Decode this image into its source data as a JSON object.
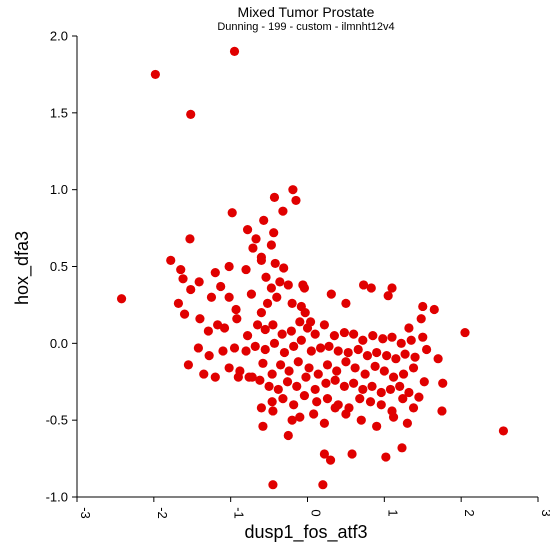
{
  "chart_data": {
    "type": "scatter",
    "title": "Mixed Tumor Prostate",
    "subtitle": "Dunning - 199 - custom - ilmnht12v4",
    "xlabel": "dusp1_fos_atf3",
    "ylabel": "hox_dfa3",
    "xlim": [
      -3,
      3
    ],
    "ylim": [
      -1.0,
      2.0
    ],
    "xticks": [
      "-3",
      "-2",
      "-1",
      "0",
      "1",
      "2",
      "3"
    ],
    "yticks": [
      "-1.0",
      "-0.5",
      "0.0",
      "0.5",
      "1.0",
      "1.5",
      "2.0"
    ],
    "grid": false,
    "legend": "none",
    "marker_color": "#e00000",
    "series": [
      {
        "x": [
          -0.95,
          -1.98,
          -1.52,
          -2.42,
          -0.43,
          -1.53,
          -1.78,
          -0.98,
          -0.19,
          -0.15,
          -0.32,
          -0.78,
          -0.44,
          -0.57,
          -0.6,
          -0.67,
          -0.47,
          -0.71,
          -0.6,
          -0.8,
          -0.42,
          -0.31,
          -0.54,
          -0.36,
          -0.47,
          -0.25,
          -0.04,
          -1.02,
          -1.2,
          -1.65,
          -1.62,
          -1.41,
          -1.52,
          -1.68,
          -1.25,
          -1.13,
          -1.02,
          -0.93,
          -0.73,
          -0.6,
          -0.52,
          -0.4,
          -0.2,
          -0.06,
          -0.08,
          -0.03,
          0.04,
          0.31,
          0.5,
          0.73,
          0.83,
          1.1,
          1.05,
          1.48,
          1.65,
          2.05,
          1.5,
          1.32,
          -1.6,
          -1.4,
          -1.29,
          -1.17,
          -1.08,
          -0.92,
          -0.78,
          -0.65,
          -0.55,
          -0.45,
          -0.33,
          -0.21,
          -0.1,
          0.0,
          0.1,
          0.22,
          0.35,
          0.48,
          0.6,
          0.72,
          0.85,
          0.98,
          1.1,
          1.22,
          1.35,
          1.5,
          -1.55,
          -1.42,
          -1.28,
          -1.1,
          -0.95,
          -0.8,
          -0.68,
          -0.55,
          -0.43,
          -0.3,
          -0.18,
          -0.08,
          0.05,
          0.17,
          0.28,
          0.4,
          0.53,
          0.66,
          0.78,
          0.9,
          1.03,
          1.15,
          1.27,
          1.4,
          1.55,
          1.7,
          -1.35,
          -1.2,
          -1.02,
          -0.88,
          -0.72,
          -0.58,
          -0.46,
          -0.35,
          -0.24,
          -0.12,
          0.02,
          0.14,
          0.26,
          0.38,
          0.5,
          0.62,
          0.75,
          0.88,
          1.0,
          1.12,
          1.25,
          1.38,
          1.52,
          -0.9,
          -0.76,
          -0.62,
          -0.5,
          -0.38,
          -0.26,
          -0.14,
          -0.02,
          0.1,
          0.24,
          0.36,
          0.48,
          0.6,
          0.72,
          0.84,
          0.96,
          1.08,
          1.2,
          1.32,
          1.45,
          -0.6,
          -0.46,
          -0.32,
          -0.18,
          -0.04,
          0.12,
          0.26,
          0.4,
          0.54,
          0.68,
          0.82,
          0.96,
          1.1,
          1.24,
          1.38,
          1.75,
          1.76,
          -0.45,
          -0.2,
          -0.1,
          0.08,
          0.22,
          0.36,
          0.5,
          0.7,
          0.9,
          1.12,
          1.3,
          2.55,
          0.22,
          0.3,
          0.58,
          1.02,
          1.23,
          -0.58,
          -0.25,
          -0.45,
          0.2
        ],
        "y": [
          1.9,
          1.75,
          1.49,
          0.29,
          0.95,
          0.68,
          0.54,
          0.85,
          1.0,
          0.93,
          0.86,
          0.74,
          0.72,
          0.8,
          0.56,
          0.68,
          0.64,
          0.62,
          0.54,
          0.48,
          0.52,
          0.49,
          0.43,
          0.4,
          0.36,
          0.38,
          0.36,
          0.5,
          0.46,
          0.48,
          0.42,
          0.4,
          0.35,
          0.26,
          0.3,
          0.37,
          0.3,
          0.22,
          0.32,
          0.2,
          0.26,
          0.3,
          0.26,
          0.38,
          0.24,
          0.2,
          0.14,
          0.32,
          0.26,
          0.38,
          0.36,
          0.36,
          0.31,
          0.16,
          0.22,
          0.07,
          0.24,
          0.1,
          0.19,
          0.16,
          0.08,
          0.12,
          0.1,
          0.16,
          0.05,
          0.12,
          0.09,
          0.12,
          0.06,
          0.08,
          0.14,
          0.1,
          0.06,
          0.12,
          0.05,
          0.07,
          0.06,
          0.02,
          0.05,
          0.03,
          0.04,
          0.0,
          0.02,
          0.04,
          -0.14,
          -0.03,
          -0.08,
          -0.05,
          -0.03,
          -0.05,
          -0.02,
          -0.04,
          0.0,
          -0.06,
          -0.02,
          0.02,
          -0.05,
          -0.03,
          -0.02,
          -0.05,
          -0.06,
          -0.04,
          -0.08,
          -0.06,
          -0.08,
          -0.1,
          -0.07,
          -0.09,
          -0.04,
          -0.1,
          -0.2,
          -0.22,
          -0.16,
          -0.18,
          -0.22,
          -0.13,
          -0.2,
          -0.14,
          -0.18,
          -0.12,
          -0.16,
          -0.2,
          -0.14,
          -0.18,
          -0.12,
          -0.16,
          -0.2,
          -0.15,
          -0.18,
          -0.22,
          -0.2,
          -0.16,
          -0.25,
          -0.22,
          -0.22,
          -0.24,
          -0.28,
          -0.3,
          -0.25,
          -0.28,
          -0.22,
          -0.3,
          -0.26,
          -0.24,
          -0.28,
          -0.26,
          -0.3,
          -0.28,
          -0.32,
          -0.3,
          -0.28,
          -0.32,
          -0.35,
          -0.42,
          -0.38,
          -0.36,
          -0.4,
          -0.34,
          -0.38,
          -0.36,
          -0.4,
          -0.42,
          -0.36,
          -0.38,
          -0.4,
          -0.44,
          -0.36,
          -0.42,
          -0.44,
          -0.26,
          -0.44,
          -0.5,
          -0.48,
          -0.46,
          -0.52,
          -0.42,
          -0.46,
          -0.5,
          -0.54,
          -0.48,
          -0.52,
          -0.57,
          -0.72,
          -0.76,
          -0.72,
          -0.74,
          -0.68,
          -0.54,
          -0.6,
          -0.92,
          -0.92
        ]
      }
    ]
  }
}
